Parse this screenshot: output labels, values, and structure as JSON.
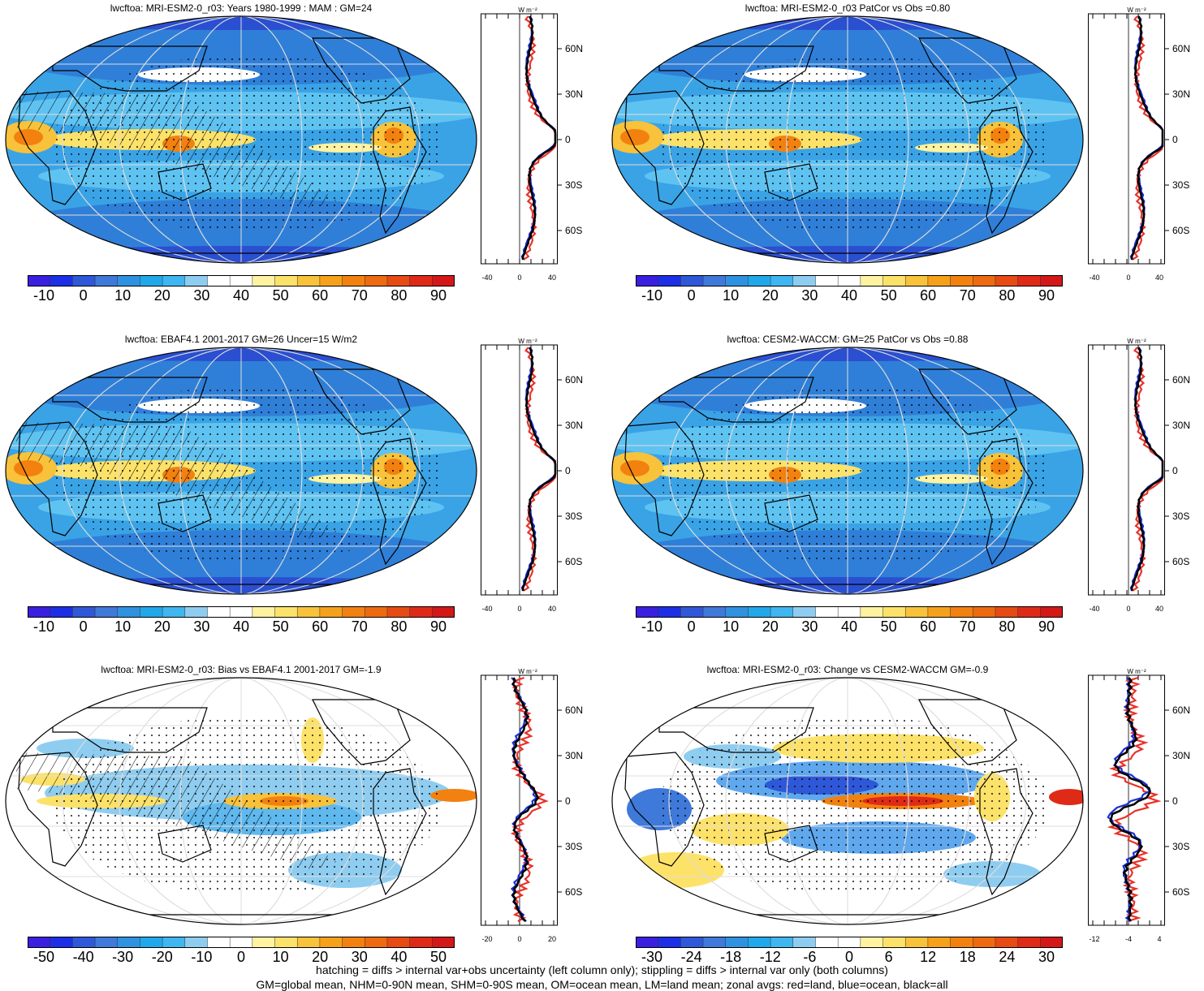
{
  "panels": [
    {
      "title": "lwcftoa: MRI-ESM2-0_r03: Years 1980-1999 : MAM : GM=24",
      "kind": "abs",
      "zx": [
        "-40",
        "0",
        "40"
      ],
      "hatch": true
    },
    {
      "title": "lwcftoa: MRI-ESM2-0_r03 PatCor vs Obs =0.80",
      "kind": "abs",
      "zx": [
        "-40",
        "0",
        "40"
      ],
      "hatch": false
    },
    {
      "title": "lwcftoa: EBAF4.1 2001-2017 GM=26 Uncer=15 W/m2",
      "kind": "abs",
      "zx": [
        "-40",
        "0",
        "40"
      ],
      "hatch": true
    },
    {
      "title": "lwcftoa: CESM2-WACCM: GM=25 PatCor vs Obs =0.88",
      "kind": "abs",
      "zx": [
        "-40",
        "0",
        "40"
      ],
      "hatch": false
    },
    {
      "title": "lwcftoa: MRI-ESM2-0_r03: Bias vs EBAF4.1 2001-2017 GM=-1.9",
      "kind": "diff",
      "zx": [
        "-20",
        "0",
        "20"
      ],
      "hatch": true
    },
    {
      "title": "lwcftoa: MRI-ESM2-0_r03: Change vs CESM2-WACCM GM=-0.9",
      "kind": "change",
      "zx": [
        "-12",
        "-4",
        "4"
      ],
      "hatch": false
    }
  ],
  "colorbars": {
    "abs": [
      "-10",
      "0",
      "10",
      "20",
      "30",
      "40",
      "50",
      "60",
      "70",
      "80",
      "90"
    ],
    "diff": [
      "-50",
      "-40",
      "-30",
      "-20",
      "-10",
      "0",
      "10",
      "20",
      "30",
      "40",
      "50"
    ],
    "change": [
      "-30",
      "-24",
      "-18",
      "-12",
      "-6",
      "0",
      "6",
      "12",
      "18",
      "24",
      "30"
    ]
  },
  "zonal_units": "W m⁻²",
  "lat_labels": [
    "60N",
    "30N",
    "0",
    "30S",
    "60S"
  ],
  "colors": {
    "abs": [
      "#3a1fe0",
      "#1d2fe6",
      "#2f58d8",
      "#3f79da",
      "#2f92e0",
      "#21a8ea",
      "#3fb6f0",
      "#8fcdf0",
      "#ffffff",
      "#ffffff",
      "#fff2a0",
      "#fde26a",
      "#f8c23a",
      "#f5a21a",
      "#f28110",
      "#ee6a10",
      "#e84a14",
      "#e02a18",
      "#d41818"
    ],
    "diff": [
      "#3a1fe0",
      "#1d2fe6",
      "#2f58d8",
      "#3f79da",
      "#2f92e0",
      "#21a8ea",
      "#3fb6f0",
      "#8fcdf0",
      "#ffffff",
      "#ffffff",
      "#fff2a0",
      "#fde26a",
      "#f8c23a",
      "#f5a21a",
      "#f28110",
      "#ee6a10",
      "#e84a14",
      "#e02a18",
      "#d41818"
    ],
    "change": [
      "#3a1fe0",
      "#1d2fe6",
      "#2f58d8",
      "#3f79da",
      "#2f92e0",
      "#21a8ea",
      "#3fb6f0",
      "#8fcdf0",
      "#ffffff",
      "#ffffff",
      "#fff2a0",
      "#fde26a",
      "#f8c23a",
      "#f5a21a",
      "#f28110",
      "#ee6a10",
      "#e84a14",
      "#e02a18",
      "#d41818"
    ],
    "land": "#e8322a",
    "ocean": "#1a2ed8",
    "all": "#000000"
  },
  "footer": [
    "hatching = diffs > internal var+obs uncertainty (left column only); stippling = diffs > internal var only (both columns)",
    "GM=global mean, NHM=0-90N mean, SHM=0-90S mean, OM=ocean mean, LM=land mean; zonal avgs: red=land, blue=ocean, black=all"
  ]
}
